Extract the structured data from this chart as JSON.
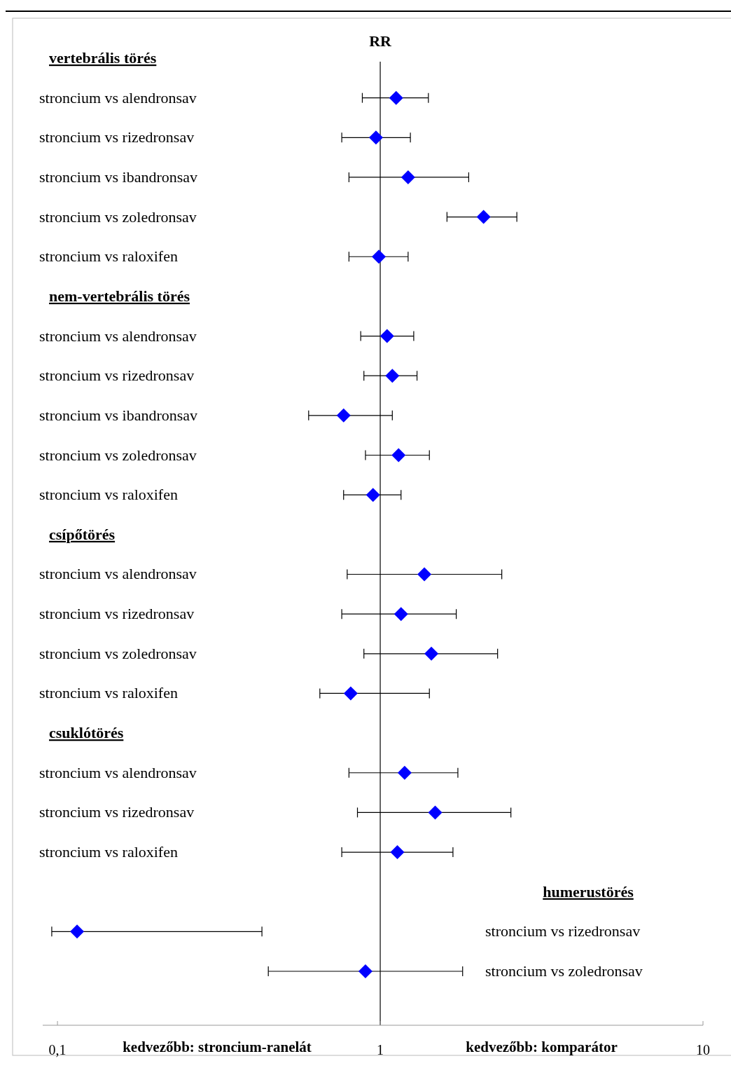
{
  "chart_data": {
    "type": "scatter",
    "orientation": "horizontal",
    "log": "x",
    "xlabel": "RR",
    "marker": "diamond",
    "grid": false,
    "categories": [
      "vertebrális törés",
      "stroncium vs alendronsav",
      "stroncium vs rizedronsav",
      "stroncium vs ibandronsav",
      "stroncium vs zoledronsav",
      "stroncium vs raloxifen",
      "nem-vertebrális törés",
      "stroncium vs alendronsav",
      "stroncium vs rizedronsav",
      "stroncium vs ibandronsav",
      "stroncium vs zoledronsav",
      "stroncium vs raloxifen",
      "csípőtörés",
      "stroncium vs alendronsav",
      "stroncium vs rizedronsav",
      "stroncium vs zoledronsav",
      "stroncium vs raloxifen",
      "csuklótörés",
      "stroncium vs alendronsav",
      "stroncium vs rizedronsav",
      "stroncium vs raloxifen",
      "humerustörés",
      "stroncium vs rizedronsav",
      "stroncium vs zoledronsav"
    ],
    "series": [
      {
        "color": "#0000ff",
        "values": [
          null,
          1.12,
          0.97,
          1.22,
          2.09,
          0.99,
          null,
          1.05,
          1.09,
          0.77,
          1.14,
          0.95,
          null,
          1.37,
          1.16,
          1.44,
          0.81,
          null,
          1.19,
          1.48,
          1.13,
          null,
          0.115,
          0.9
        ],
        "errors": [
          null,
          [
            0.88,
            1.41
          ],
          [
            0.76,
            1.24
          ],
          [
            0.8,
            1.88
          ],
          [
            1.61,
            2.65
          ],
          [
            0.8,
            1.22
          ],
          null,
          [
            0.87,
            1.27
          ],
          [
            0.89,
            1.3
          ],
          [
            0.6,
            1.09
          ],
          [
            0.9,
            1.42
          ],
          [
            0.77,
            1.16
          ],
          null,
          [
            0.79,
            2.38
          ],
          [
            0.76,
            1.72
          ],
          [
            0.89,
            2.31
          ],
          [
            0.65,
            1.42
          ],
          null,
          [
            0.8,
            1.74
          ],
          [
            0.85,
            2.54
          ],
          [
            0.76,
            1.68
          ],
          null,
          [
            0.096,
            0.43
          ],
          [
            0.45,
            1.8
          ]
        ]
      }
    ],
    "xlim": [
      0.09,
      10
    ],
    "xticks": [
      {
        "value": 0.1,
        "label": "0,1"
      },
      1,
      10
    ],
    "ref_lines": [
      {
        "axis": "x",
        "value": 1,
        "color": "#000000"
      }
    ],
    "annotations": [
      "kedvezőbb: stroncium-ranelát",
      "kedvezőbb: komparátor"
    ]
  }
}
